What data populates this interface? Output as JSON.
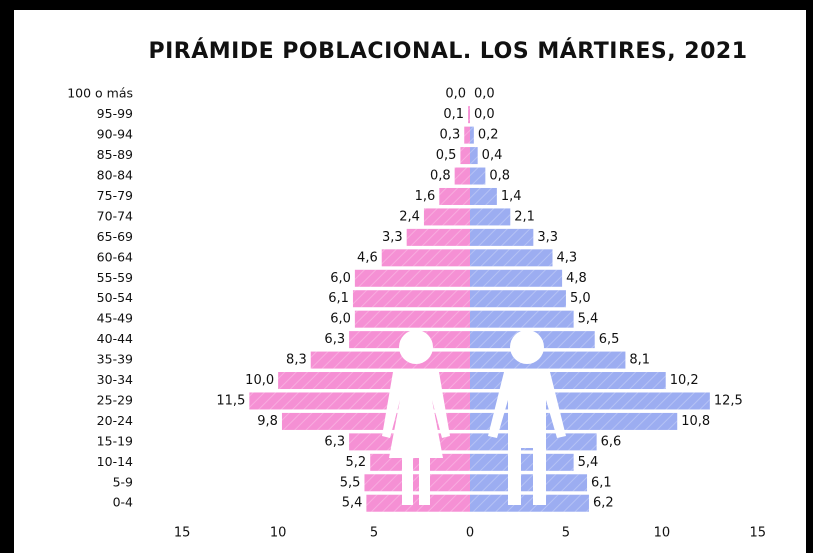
{
  "chart_data": {
    "type": "pyramid",
    "title": "PIRÁMIDE POBLACIONAL. LOS MÁRTIRES, 2021",
    "categories": [
      "100 o más",
      "95-99",
      "90-94",
      "85-89",
      "80-84",
      "75-79",
      "70-74",
      "65-69",
      "60-64",
      "55-59",
      "50-54",
      "45-49",
      "40-44",
      "35-39",
      "30-34",
      "25-29",
      "20-24",
      "15-19",
      "10-14",
      "5-9",
      "0-4"
    ],
    "series": [
      {
        "color": "#f590d4",
        "side": "left",
        "values": [
          0.0,
          0.1,
          0.3,
          0.5,
          0.8,
          1.6,
          2.4,
          3.3,
          4.6,
          6.0,
          6.1,
          6.0,
          6.3,
          8.3,
          10.0,
          11.5,
          9.8,
          6.3,
          5.2,
          5.5,
          5.4
        ],
        "value_labels": [
          "0,0",
          "0,1",
          "0,3",
          "0,5",
          "0,8",
          "1,6",
          "2,4",
          "3,3",
          "4,6",
          "6,0",
          "6,1",
          "6,0",
          "6,3",
          "8,3",
          "10,0",
          "11,5",
          "9,8",
          "6,3",
          "5,2",
          "5,5",
          "5,4"
        ]
      },
      {
        "color": "#9cadf1",
        "side": "right",
        "values": [
          0.0,
          0.0,
          0.2,
          0.4,
          0.8,
          1.4,
          2.1,
          3.3,
          4.3,
          4.8,
          5.0,
          5.4,
          6.5,
          8.1,
          10.2,
          12.5,
          10.8,
          6.6,
          5.4,
          6.1,
          6.2
        ],
        "value_labels": [
          "0,0",
          "0,0",
          "0,2",
          "0,4",
          "0,8",
          "1,4",
          "2,1",
          "3,3",
          "4,3",
          "4,8",
          "5,0",
          "5,4",
          "6,5",
          "8,1",
          "10,2",
          "12,5",
          "10,8",
          "6,6",
          "5,4",
          "6,1",
          "6,2"
        ]
      }
    ],
    "xlim": [
      -16,
      16
    ],
    "xticks": [
      {
        "value": -15,
        "label": "15"
      },
      {
        "value": -10,
        "label": "10"
      },
      {
        "value": -5,
        "label": "5"
      },
      0,
      5,
      10,
      15
    ]
  }
}
